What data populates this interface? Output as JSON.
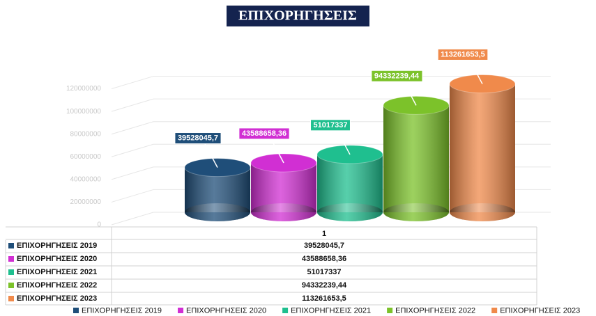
{
  "chart_data": {
    "type": "bar3d",
    "title": "ΕΠΙΧΟΡΗΓΗΣΕΙΣ",
    "categories": [
      "1"
    ],
    "series": [
      {
        "name": "ΕΠΙΧΟΡΗΓΗΣΕΙΣ 2019",
        "color": "#1f4e79",
        "values": [
          39528045.7
        ],
        "value_labels": [
          "39528045,7"
        ]
      },
      {
        "name": "ΕΠΙΧΟΡΗΓΗΣΕΙΣ 2020",
        "color": "#d12fd3",
        "values": [
          43588658.36
        ],
        "value_labels": [
          "43588658,36"
        ]
      },
      {
        "name": "ΕΠΙΧΟΡΗΓΗΣΕΙΣ 2021",
        "color": "#1fbf8f",
        "values": [
          51017337
        ],
        "value_labels": [
          "51017337"
        ]
      },
      {
        "name": "ΕΠΙΧΟΡΗΓΗΣΕΙΣ 2022",
        "color": "#7cc22a",
        "values": [
          94332239.44
        ],
        "value_labels": [
          "94332239,44"
        ]
      },
      {
        "name": "ΕΠΙΧΟΡΗΓΗΣΕΙΣ 2023",
        "color": "#f08a4b",
        "values": [
          113261653.5
        ],
        "value_labels": [
          "113261653,5"
        ]
      }
    ],
    "ylim": [
      0,
      140000000
    ],
    "yticks": [
      0,
      20000000,
      40000000,
      60000000,
      80000000,
      100000000,
      120000000
    ],
    "grid": true,
    "legend": "bottom"
  }
}
